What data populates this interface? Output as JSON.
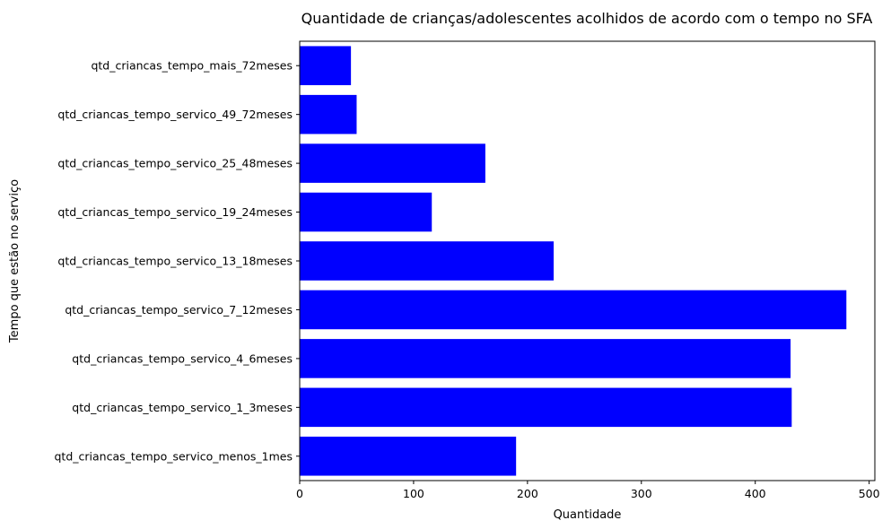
{
  "chart_data": {
    "type": "bar",
    "orientation": "horizontal",
    "title": "Quantidade de crianças/adolescentes acolhidos de acordo com o tempo no SFA",
    "xlabel": "Quantidade",
    "ylabel": "Tempo que estão no serviço",
    "xlim": [
      0,
      505
    ],
    "xticks": [
      0,
      100,
      200,
      300,
      400,
      500
    ],
    "grid": false,
    "bar_color": "#0000ff",
    "categories": [
      "qtd_criancas_tempo_servico_menos_1mes",
      "qtd_criancas_tempo_servico_1_3meses",
      "qtd_criancas_tempo_servico_4_6meses",
      "qtd_criancas_tempo_servico_7_12meses",
      "qtd_criancas_tempo_servico_13_18meses",
      "qtd_criancas_tempo_servico_19_24meses",
      "qtd_criancas_tempo_servico_25_48meses",
      "qtd_criancas_tempo_servico_49_72meses",
      "qtd_criancas_tempo_mais_72meses"
    ],
    "values": [
      190,
      432,
      431,
      480,
      223,
      116,
      163,
      50,
      45
    ]
  }
}
